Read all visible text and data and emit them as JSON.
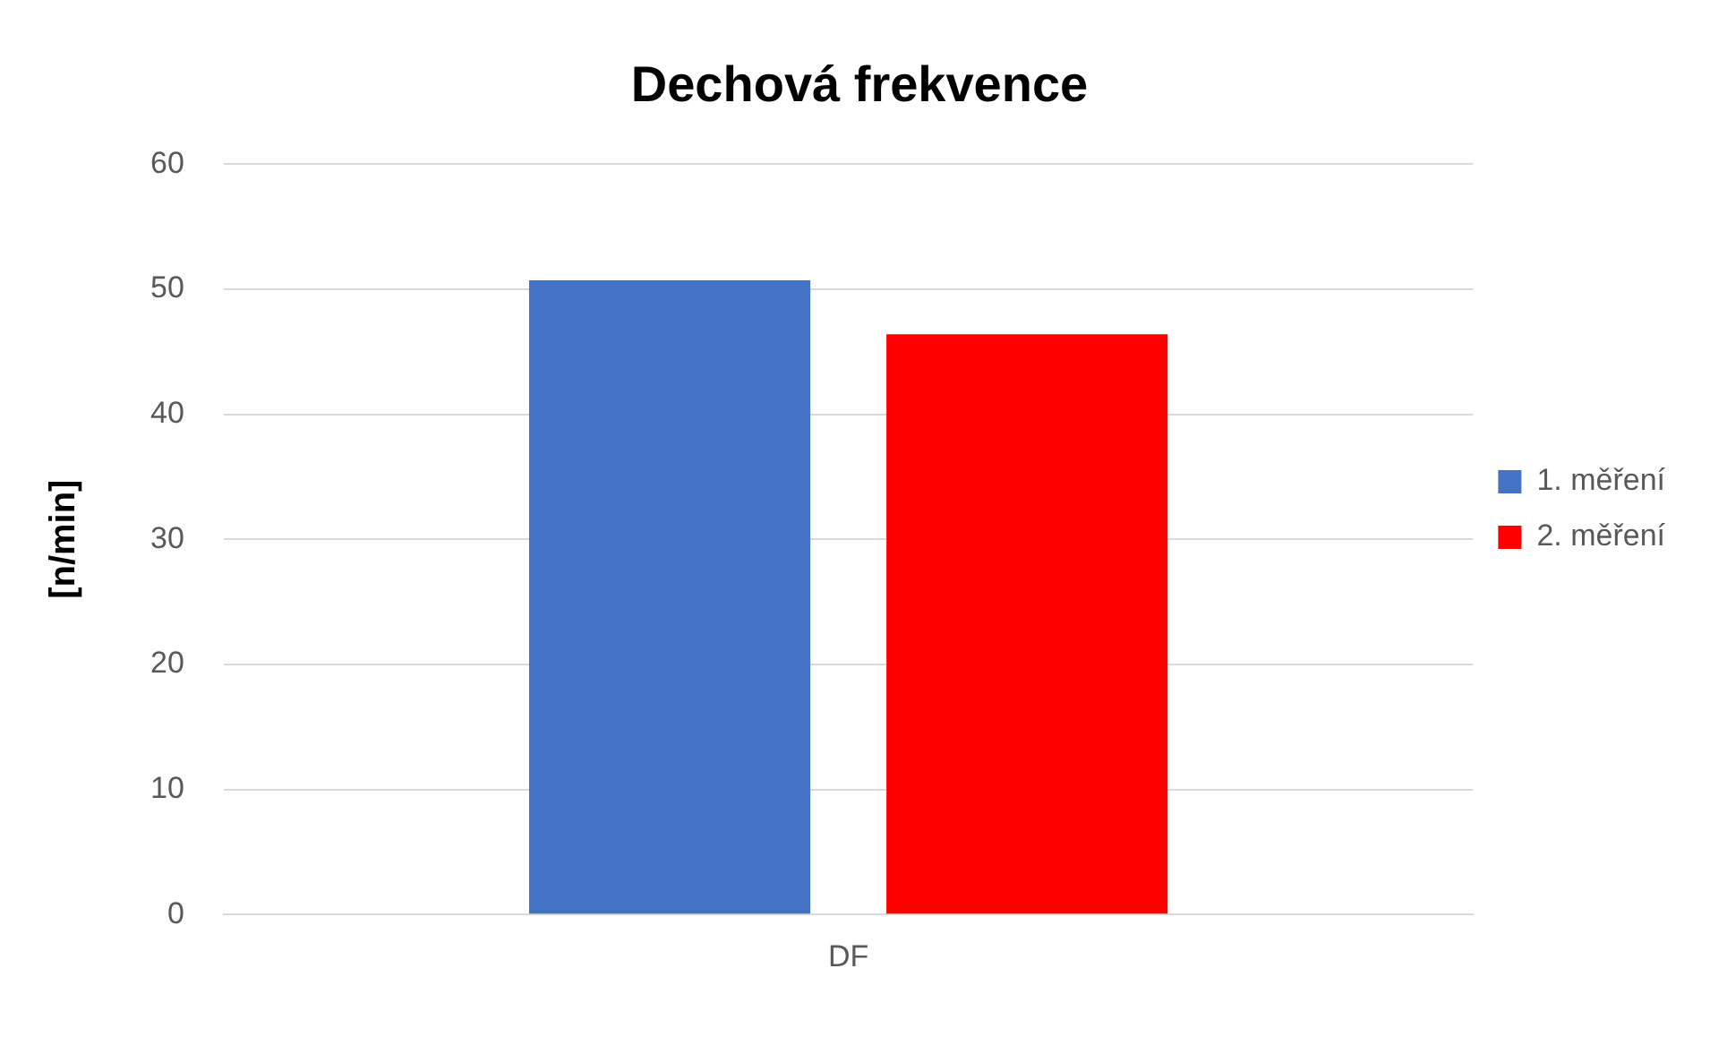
{
  "chart_data": {
    "type": "bar",
    "title": "Dechová frekvence",
    "ylabel": "[n/min]",
    "categories": [
      "DF"
    ],
    "series": [
      {
        "name": "1. měření",
        "color": "#4472c4",
        "values": [
          50.7
        ]
      },
      {
        "name": "2. měření",
        "color": "#ff0000",
        "values": [
          46.4
        ]
      }
    ],
    "ylim": [
      0,
      60
    ],
    "yticks": [
      0,
      10,
      20,
      30,
      40,
      50,
      60
    ],
    "grid": "y",
    "legend": "right"
  }
}
